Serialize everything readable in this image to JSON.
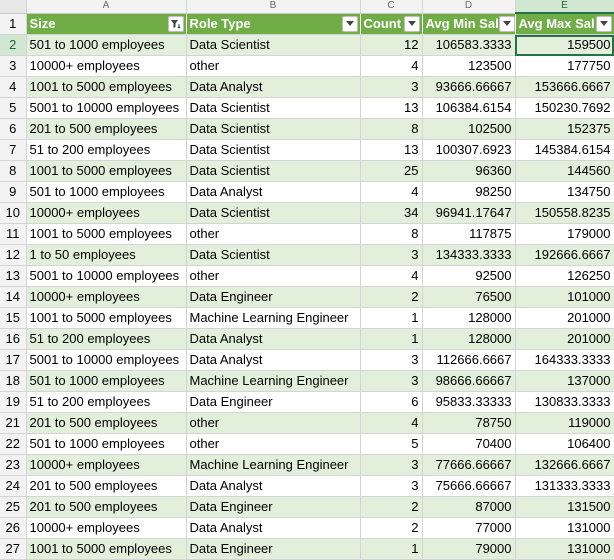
{
  "columns": [
    "",
    "A",
    "B",
    "C",
    "D",
    "E"
  ],
  "headers": {
    "size": "Size",
    "role": "Role Type",
    "count": "Count",
    "min": "Avg Min Sal",
    "max": "Avg Max Sal"
  },
  "header_row_number": "1",
  "active_cell": "E2",
  "colors": {
    "header_bg": "#70ad47",
    "band_bg": "#e2efda",
    "selection": "#217346"
  },
  "rows": [
    {
      "n": "2",
      "size": "501 to 1000 employees",
      "role": "Data Scientist",
      "count": "12",
      "min": "106583.3333",
      "max": "159500"
    },
    {
      "n": "3",
      "size": "10000+ employees",
      "role": "other",
      "count": "4",
      "min": "123500",
      "max": "177750"
    },
    {
      "n": "4",
      "size": "1001 to 5000 employees",
      "role": "Data Analyst",
      "count": "3",
      "min": "93666.66667",
      "max": "153666.6667"
    },
    {
      "n": "5",
      "size": "5001 to 10000 employees",
      "role": "Data Scientist",
      "count": "13",
      "min": "106384.6154",
      "max": "150230.7692"
    },
    {
      "n": "6",
      "size": "201 to 500 employees",
      "role": "Data Scientist",
      "count": "8",
      "min": "102500",
      "max": "152375"
    },
    {
      "n": "7",
      "size": "51 to 200 employees",
      "role": "Data Scientist",
      "count": "13",
      "min": "100307.6923",
      "max": "145384.6154"
    },
    {
      "n": "8",
      "size": "1001 to 5000 employees",
      "role": "Data Scientist",
      "count": "25",
      "min": "96360",
      "max": "144560"
    },
    {
      "n": "9",
      "size": "501 to 1000 employees",
      "role": "Data Analyst",
      "count": "4",
      "min": "98250",
      "max": "134750"
    },
    {
      "n": "10",
      "size": "10000+ employees",
      "role": "Data Scientist",
      "count": "34",
      "min": "96941.17647",
      "max": "150558.8235"
    },
    {
      "n": "11",
      "size": "1001 to 5000 employees",
      "role": "other",
      "count": "8",
      "min": "117875",
      "max": "179000"
    },
    {
      "n": "12",
      "size": "1 to 50 employees",
      "role": "Data Scientist",
      "count": "3",
      "min": "134333.3333",
      "max": "192666.6667"
    },
    {
      "n": "13",
      "size": "5001 to 10000 employees",
      "role": "other",
      "count": "4",
      "min": "92500",
      "max": "126250"
    },
    {
      "n": "14",
      "size": "10000+ employees",
      "role": "Data Engineer",
      "count": "2",
      "min": "76500",
      "max": "101000"
    },
    {
      "n": "15",
      "size": "1001 to 5000 employees",
      "role": "Machine Learning Engineer",
      "count": "1",
      "min": "128000",
      "max": "201000"
    },
    {
      "n": "16",
      "size": "51 to 200 employees",
      "role": "Data Analyst",
      "count": "1",
      "min": "128000",
      "max": "201000"
    },
    {
      "n": "17",
      "size": "5001 to 10000 employees",
      "role": "Data Analyst",
      "count": "3",
      "min": "112666.6667",
      "max": "164333.3333"
    },
    {
      "n": "18",
      "size": "501 to 1000 employees",
      "role": "Machine Learning Engineer",
      "count": "3",
      "min": "98666.66667",
      "max": "137000"
    },
    {
      "n": "19",
      "size": "51 to 200 employees",
      "role": "Data Engineer",
      "count": "6",
      "min": "95833.33333",
      "max": "130833.3333"
    },
    {
      "n": "21",
      "size": "201 to 500 employees",
      "role": "other",
      "count": "4",
      "min": "78750",
      "max": "119000"
    },
    {
      "n": "22",
      "size": "501 to 1000 employees",
      "role": "other",
      "count": "5",
      "min": "70400",
      "max": "106400"
    },
    {
      "n": "23",
      "size": "10000+ employees",
      "role": "Machine Learning Engineer",
      "count": "3",
      "min": "77666.66667",
      "max": "132666.6667"
    },
    {
      "n": "24",
      "size": "201 to 500 employees",
      "role": "Data Analyst",
      "count": "3",
      "min": "75666.66667",
      "max": "131333.3333"
    },
    {
      "n": "25",
      "size": "201 to 500 employees",
      "role": "Data Engineer",
      "count": "2",
      "min": "87000",
      "max": "131500"
    },
    {
      "n": "26",
      "size": "10000+ employees",
      "role": "Data Analyst",
      "count": "2",
      "min": "77000",
      "max": "131000"
    },
    {
      "n": "27",
      "size": "1001 to 5000 employees",
      "role": "Data Engineer",
      "count": "1",
      "min": "79000",
      "max": "131000"
    }
  ]
}
